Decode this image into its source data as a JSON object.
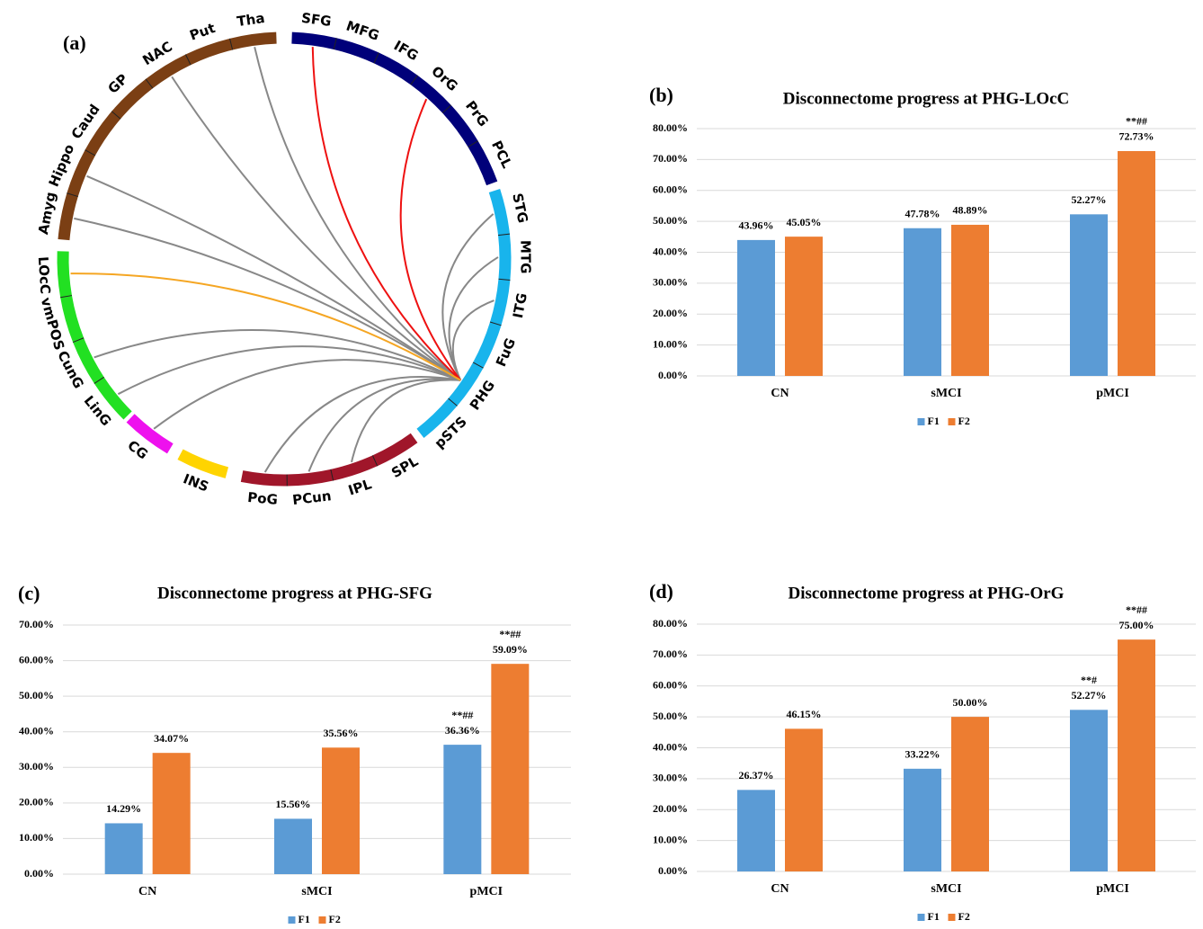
{
  "chart_data": [
    {
      "type": "chord",
      "label": "(a)",
      "groups": [
        {
          "color": "#7b3f14",
          "regions": [
            "Amyg",
            "Hippo",
            "Caud",
            "GP",
            "NAC",
            "Put",
            "Tha"
          ]
        },
        {
          "color": "#00007a",
          "regions": [
            "SFG",
            "MFG",
            "IFG",
            "OrG",
            "PrG",
            "PCL"
          ]
        },
        {
          "color": "#18b4ec",
          "regions": [
            "STG",
            "MTG",
            "ITG",
            "FuG",
            "PHG",
            "pSTS"
          ]
        },
        {
          "color": "#a0162a",
          "regions": [
            "SPL",
            "IPL",
            "PCun",
            "PoG"
          ]
        },
        {
          "color": "#ffd400",
          "regions": [
            "INS"
          ]
        },
        {
          "color": "#ee11ee",
          "regions": [
            "CG"
          ]
        },
        {
          "color": "#22e022",
          "regions": [
            "LinG",
            "CunG",
            "vmPOS",
            "LOcC"
          ]
        }
      ],
      "links": [
        {
          "source": "PHG",
          "target": "Tha",
          "color": "#888888"
        },
        {
          "source": "PHG",
          "target": "NAC",
          "color": "#888888"
        },
        {
          "source": "PHG",
          "target": "Hippo",
          "color": "#888888"
        },
        {
          "source": "PHG",
          "target": "Amyg",
          "color": "#888888"
        },
        {
          "source": "PHG",
          "target": "LinG",
          "color": "#888888"
        },
        {
          "source": "PHG",
          "target": "CunG",
          "color": "#888888"
        },
        {
          "source": "PHG",
          "target": "CG",
          "color": "#888888"
        },
        {
          "source": "PHG",
          "target": "PoG",
          "color": "#888888"
        },
        {
          "source": "PHG",
          "target": "PCun",
          "color": "#888888"
        },
        {
          "source": "PHG",
          "target": "IPL",
          "color": "#888888"
        },
        {
          "source": "PHG",
          "target": "STG",
          "color": "#888888"
        },
        {
          "source": "PHG",
          "target": "MTG",
          "color": "#888888"
        },
        {
          "source": "PHG",
          "target": "ITG",
          "color": "#888888"
        },
        {
          "source": "PHG",
          "target": "SFG",
          "color": "#ee1111"
        },
        {
          "source": "PHG",
          "target": "OrG",
          "color": "#ee1111"
        },
        {
          "source": "PHG",
          "target": "LOcC",
          "color": "#f5a623"
        }
      ]
    },
    {
      "type": "bar",
      "label": "(b)",
      "title": "Disconnectome progress at PHG-LOcC",
      "categories": [
        "CN",
        "sMCI",
        "pMCI"
      ],
      "series": [
        {
          "name": "F1",
          "color": "#5b9bd5",
          "values": [
            43.96,
            47.78,
            52.27
          ],
          "value_labels": [
            "43.96%",
            "47.78%",
            "52.27%"
          ],
          "significance": [
            null,
            null,
            null
          ]
        },
        {
          "name": "F2",
          "color": "#ed7d31",
          "values": [
            45.05,
            48.89,
            72.73
          ],
          "value_labels": [
            "45.05%",
            "48.89%",
            "72.73%"
          ],
          "significance": [
            null,
            null,
            "**##"
          ]
        }
      ],
      "ylim": [
        0,
        80
      ],
      "yticks": [
        {
          "value": 0,
          "label": "0.00%"
        },
        {
          "value": 10,
          "label": "10.00%"
        },
        {
          "value": 20,
          "label": "20.00%"
        },
        {
          "value": 30,
          "label": "30.00%"
        },
        {
          "value": 40,
          "label": "40.00%"
        },
        {
          "value": 50,
          "label": "50.00%"
        },
        {
          "value": 60,
          "label": "60.00%"
        },
        {
          "value": 70,
          "label": "70.00%"
        },
        {
          "value": 80,
          "label": "80.00%"
        }
      ],
      "grid": true,
      "legend": "bottom"
    },
    {
      "type": "bar",
      "label": "(c)",
      "title": "Disconnectome progress at PHG-SFG",
      "categories": [
        "CN",
        "sMCI",
        "pMCI"
      ],
      "series": [
        {
          "name": "F1",
          "color": "#5b9bd5",
          "values": [
            14.29,
            15.56,
            36.36
          ],
          "value_labels": [
            "14.29%",
            "15.56%",
            "36.36%"
          ],
          "significance": [
            null,
            null,
            "**##"
          ]
        },
        {
          "name": "F2",
          "color": "#ed7d31",
          "values": [
            34.07,
            35.56,
            59.09
          ],
          "value_labels": [
            "34.07%",
            "35.56%",
            "59.09%"
          ],
          "significance": [
            null,
            null,
            "**##"
          ]
        }
      ],
      "ylim": [
        0,
        70
      ],
      "yticks": [
        {
          "value": 0,
          "label": "0.00%"
        },
        {
          "value": 10,
          "label": "10.00%"
        },
        {
          "value": 20,
          "label": "20.00%"
        },
        {
          "value": 30,
          "label": "30.00%"
        },
        {
          "value": 40,
          "label": "40.00%"
        },
        {
          "value": 50,
          "label": "50.00%"
        },
        {
          "value": 60,
          "label": "60.00%"
        },
        {
          "value": 70,
          "label": "70.00%"
        }
      ],
      "grid": true,
      "legend": "bottom"
    },
    {
      "type": "bar",
      "label": "(d)",
      "title": "Disconnectome progress at PHG-OrG",
      "categories": [
        "CN",
        "sMCI",
        "pMCI"
      ],
      "series": [
        {
          "name": "F1",
          "color": "#5b9bd5",
          "values": [
            26.37,
            33.22,
            52.27
          ],
          "value_labels": [
            "26.37%",
            "33.22%",
            "52.27%"
          ],
          "significance": [
            null,
            null,
            "**#"
          ]
        },
        {
          "name": "F2",
          "color": "#ed7d31",
          "values": [
            46.15,
            50,
            75
          ],
          "value_labels": [
            "46.15%",
            "50.00%",
            "75.00%"
          ],
          "significance": [
            null,
            null,
            "**##"
          ]
        }
      ],
      "ylim": [
        0,
        80
      ],
      "yticks": [
        {
          "value": 0,
          "label": "0.00%"
        },
        {
          "value": 10,
          "label": "10.00%"
        },
        {
          "value": 20,
          "label": "20.00%"
        },
        {
          "value": 30,
          "label": "30.00%"
        },
        {
          "value": 40,
          "label": "40.00%"
        },
        {
          "value": 50,
          "label": "50.00%"
        },
        {
          "value": 60,
          "label": "60.00%"
        },
        {
          "value": 70,
          "label": "70.00%"
        },
        {
          "value": 80,
          "label": "80.00%"
        }
      ],
      "grid": true,
      "legend": "bottom"
    }
  ]
}
